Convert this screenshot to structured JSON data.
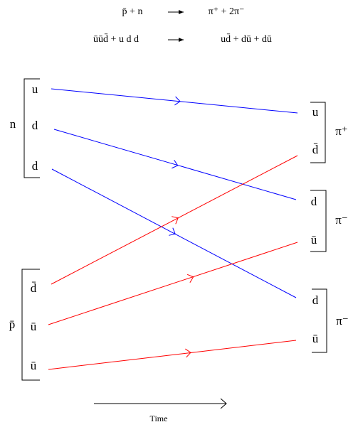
{
  "equations": [
    {
      "left": "p̄ + n",
      "right": "π⁺ + 2π⁻"
    },
    {
      "left": "ūūd̄  +  u d d",
      "right": "ud̄  +  dū  +  dū"
    }
  ],
  "hadrons_in": [
    {
      "label": "n",
      "quarks": [
        "u",
        "d",
        "d"
      ]
    },
    {
      "label": "p̄",
      "quarks": [
        "d̄",
        "ū",
        "ū"
      ]
    }
  ],
  "hadrons_out": [
    {
      "label": "π⁺",
      "quarks": [
        "u",
        "d̄"
      ]
    },
    {
      "label": "π⁻",
      "quarks": [
        "d",
        "ū"
      ]
    },
    {
      "label": "π⁻",
      "quarks": [
        "d",
        "ū"
      ]
    }
  ],
  "time_label": "Time"
}
